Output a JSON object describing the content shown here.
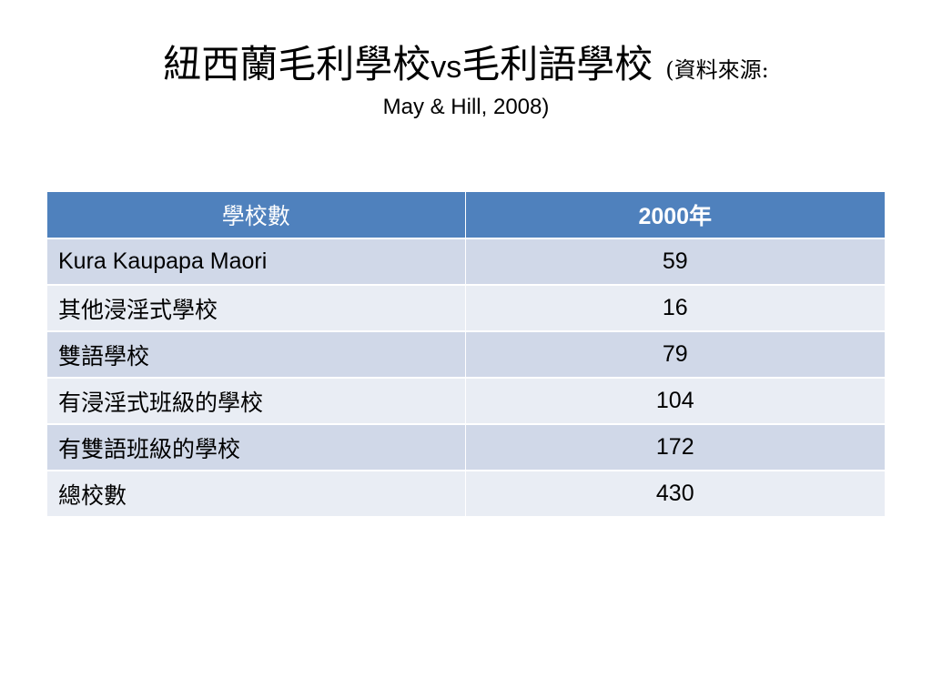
{
  "title": {
    "main": "紐西蘭毛利學校",
    "vs": "vs",
    "main2": "毛利語學校",
    "source_line1": "(資料來源:",
    "source_line2": "May & Hill, 2008)"
  },
  "table": {
    "headers": [
      "學校數",
      "2000年"
    ],
    "rows": [
      {
        "name": "Kura Kaupapa Maori",
        "value": "59"
      },
      {
        "name": "其他浸淫式學校",
        "value": "16"
      },
      {
        "name": "雙語學校",
        "value": "79"
      },
      {
        "name": "有浸淫式班級的學校",
        "value": "104"
      },
      {
        "name": "有雙語班級的學校",
        "value": "172"
      },
      {
        "name": "總校數",
        "value": "430"
      }
    ]
  },
  "colors": {
    "header": "#4f81bd",
    "row_dark": "#d0d8e8",
    "row_light": "#e9edf4"
  }
}
